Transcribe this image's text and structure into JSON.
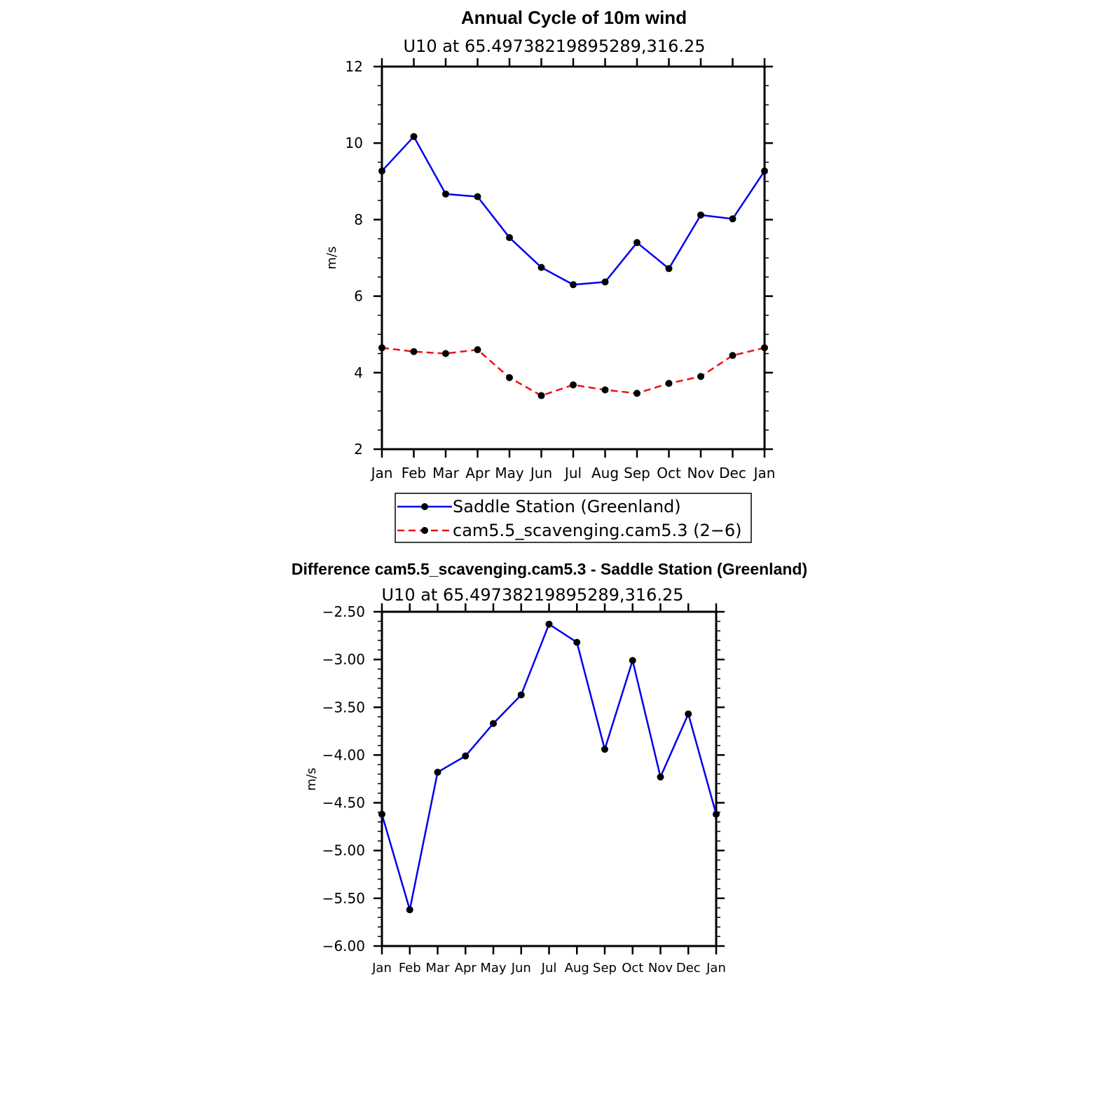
{
  "chart_data": [
    {
      "type": "line",
      "title": "Annual Cycle of 10m wind",
      "subtitle": "U10  at  65.49738219895289,316.25",
      "ylabel": "m/s",
      "xlabel": "",
      "ylim": [
        2,
        12
      ],
      "yticks": [
        "2",
        "4",
        "6",
        "8",
        "10",
        "12"
      ],
      "categories": [
        "Jan",
        "Feb",
        "Mar",
        "Apr",
        "May",
        "Jun",
        "Jul",
        "Aug",
        "Sep",
        "Oct",
        "Nov",
        "Dec",
        "Jan"
      ],
      "legend_position": "bottom-center",
      "grid": false,
      "series": [
        {
          "name": "Saddle Station (Greenland)",
          "color": "#0000ee",
          "dash": "solid",
          "values": [
            9.27,
            10.17,
            8.67,
            8.6,
            7.53,
            6.75,
            6.3,
            6.37,
            7.4,
            6.72,
            8.12,
            8.02,
            9.27
          ]
        },
        {
          "name": "cam5.5_scavenging.cam5.3 (2−6)",
          "color": "#ee1111",
          "dash": "dashed",
          "values": [
            4.65,
            4.55,
            4.5,
            4.6,
            3.87,
            3.4,
            3.68,
            3.55,
            3.46,
            3.72,
            3.9,
            4.45,
            4.65
          ]
        }
      ]
    },
    {
      "type": "line",
      "title": "Difference cam5.5_scavenging.cam5.3 - Saddle Station (Greenland)",
      "subtitle": "U10  at  65.49738219895289,316.25",
      "ylabel": "m/s",
      "xlabel": "",
      "ylim": [
        -6.0,
        -2.5
      ],
      "yticks": [
        "−6.00",
        "−5.50",
        "−5.00",
        "−4.50",
        "−4.00",
        "−3.50",
        "−3.00",
        "−2.50"
      ],
      "categories": [
        "Jan",
        "Feb",
        "Mar",
        "Apr",
        "May",
        "Jun",
        "Jul",
        "Aug",
        "Sep",
        "Oct",
        "Nov",
        "Dec",
        "Jan"
      ],
      "grid": false,
      "series": [
        {
          "color": "#0000ee",
          "dash": "solid",
          "values": [
            -4.62,
            -5.62,
            -4.18,
            -4.01,
            -3.67,
            -3.37,
            -2.63,
            -2.82,
            -3.94,
            -3.01,
            -4.23,
            -3.57,
            -4.62
          ]
        }
      ]
    }
  ]
}
